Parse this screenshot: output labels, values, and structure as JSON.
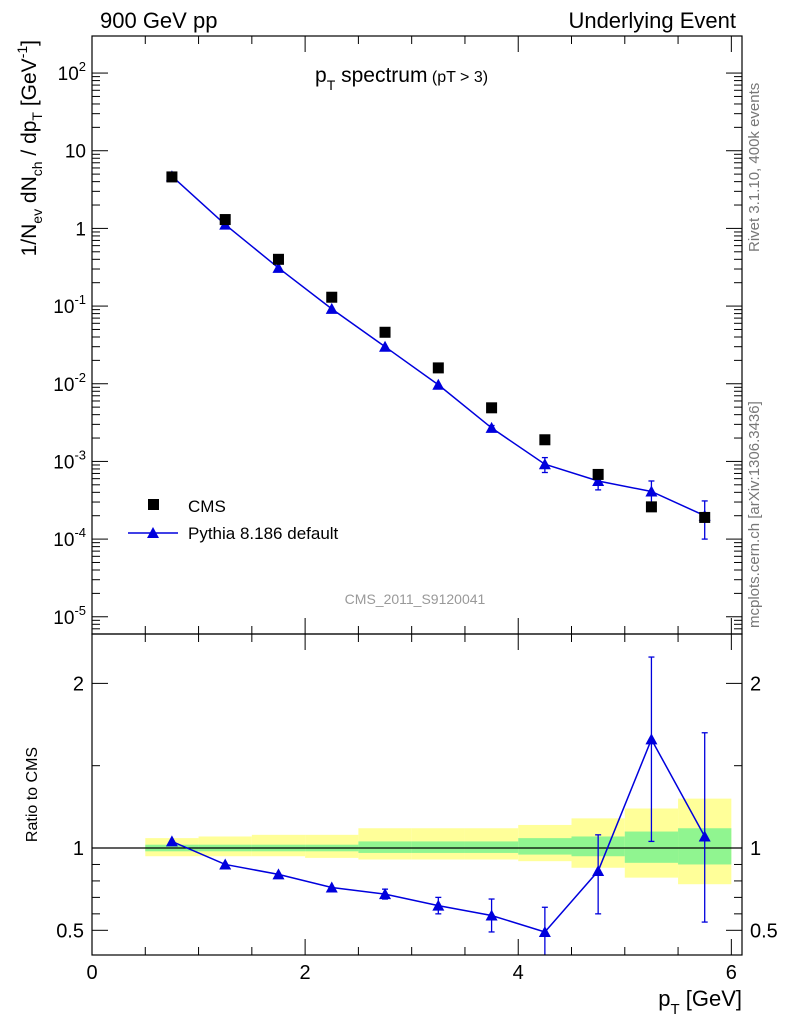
{
  "header": {
    "left": "900 GeV pp",
    "right": "Underlying Event"
  },
  "side_labels": {
    "rivet": "Rivet 3.1.10,  400k events",
    "mcplots": "mcplots.cern.ch [arXiv:1306.3436]"
  },
  "colors": {
    "mc": "#0000dd",
    "band_stat": "#90f590",
    "band_tot": "#ffff99",
    "data": "#000000"
  },
  "chart_data": [
    {
      "type": "scatter",
      "title": "p_T spectrum (pT > 3)",
      "title_main": "p",
      "title_sub": "T",
      "title_rest": "spectrum",
      "title_cut": "(pT >  3)",
      "ylabel": "1/N_ev dN_ch / dp_T [GeV^-1]",
      "yscale": "log",
      "ylim": [
        6e-06,
        300
      ],
      "xlim": [
        0,
        6.1
      ],
      "y_ticks": [
        {
          "value": 100,
          "base": "10",
          "exp": "2"
        },
        {
          "value": 10,
          "base": "10",
          "exp": ""
        },
        {
          "value": 1,
          "base": "1",
          "exp": ""
        },
        {
          "value": 0.1,
          "base": "10",
          "exp": "-1"
        },
        {
          "value": 0.01,
          "base": "10",
          "exp": "-2"
        },
        {
          "value": 0.001,
          "base": "10",
          "exp": "-3"
        },
        {
          "value": 0.0001,
          "base": "10",
          "exp": "-4"
        },
        {
          "value": 1e-05,
          "base": "10",
          "exp": "-5"
        }
      ],
      "legend": {
        "position": "bottom-left",
        "data_label": "CMS",
        "mc_label": "Pythia 8.186 default"
      },
      "watermark": "CMS_2011_S9120041",
      "data_series": {
        "name": "CMS",
        "x": [
          0.75,
          1.25,
          1.75,
          2.25,
          2.75,
          3.25,
          3.75,
          4.25,
          4.75,
          5.25,
          5.75
        ],
        "y": [
          4.6,
          1.3,
          0.4,
          0.13,
          0.046,
          0.016,
          0.0049,
          0.0019,
          0.00068,
          0.00026,
          0.00019
        ]
      },
      "mc_series": {
        "name": "Pythia 8.186 default",
        "x": [
          0.75,
          1.25,
          1.75,
          2.25,
          2.75,
          3.25,
          3.75,
          4.25,
          4.75,
          5.25,
          5.75
        ],
        "y": [
          4.7,
          1.12,
          0.31,
          0.092,
          0.03,
          0.0097,
          0.0027,
          0.00092,
          0.00056,
          0.00041,
          0.0002
        ],
        "err_low": [
          0,
          0,
          0,
          0,
          0,
          0,
          0.0002,
          0.0002,
          0.00013,
          0.00012,
          0.0001
        ],
        "err_high": [
          0,
          0,
          0,
          0,
          0,
          0,
          0.0002,
          0.0002,
          0.00013,
          0.00015,
          0.00011
        ]
      }
    },
    {
      "type": "line",
      "title": "Ratio to CMS",
      "ylabel": "Ratio to CMS",
      "xlabel": "p_T [GeV]",
      "xlabel_main": "p",
      "xlabel_sub": "T",
      "xlabel_rest": "[GeV]",
      "xlim": [
        0,
        6.1
      ],
      "ylim": [
        0.35,
        2.3
      ],
      "x_ticks": [
        "0",
        "2",
        "4",
        "6"
      ],
      "y_ticks": [
        "0.5",
        "1",
        "2"
      ],
      "reference": 1.0,
      "bands": {
        "x_edges": [
          0.5,
          1.0,
          1.5,
          2.0,
          2.5,
          3.0,
          3.5,
          4.0,
          4.5,
          5.0,
          5.5,
          6.0
        ],
        "stat_low": [
          0.98,
          0.98,
          0.98,
          0.98,
          0.97,
          0.97,
          0.97,
          0.96,
          0.95,
          0.91,
          0.9
        ],
        "stat_high": [
          1.02,
          1.02,
          1.02,
          1.02,
          1.04,
          1.04,
          1.04,
          1.06,
          1.07,
          1.1,
          1.12
        ],
        "tot_low": [
          0.95,
          0.95,
          0.95,
          0.94,
          0.93,
          0.93,
          0.93,
          0.92,
          0.88,
          0.82,
          0.78
        ],
        "tot_high": [
          1.06,
          1.07,
          1.08,
          1.08,
          1.12,
          1.12,
          1.12,
          1.14,
          1.18,
          1.24,
          1.3
        ]
      },
      "series": [
        {
          "name": "Pythia 8.186 default",
          "x": [
            0.75,
            1.25,
            1.75,
            2.25,
            2.75,
            3.25,
            3.75,
            4.25,
            4.75,
            5.25,
            5.75
          ],
          "y": [
            1.04,
            0.9,
            0.84,
            0.76,
            0.72,
            0.65,
            0.59,
            0.49,
            0.86,
            1.66,
            1.07
          ],
          "err_low": [
            0,
            0,
            0,
            0,
            0.03,
            0.05,
            0.1,
            0.18,
            0.26,
            0.62,
            0.52
          ],
          "err_high": [
            0,
            0,
            0,
            0,
            0.03,
            0.05,
            0.1,
            0.15,
            0.22,
            0.5,
            0.63
          ]
        }
      ]
    }
  ]
}
